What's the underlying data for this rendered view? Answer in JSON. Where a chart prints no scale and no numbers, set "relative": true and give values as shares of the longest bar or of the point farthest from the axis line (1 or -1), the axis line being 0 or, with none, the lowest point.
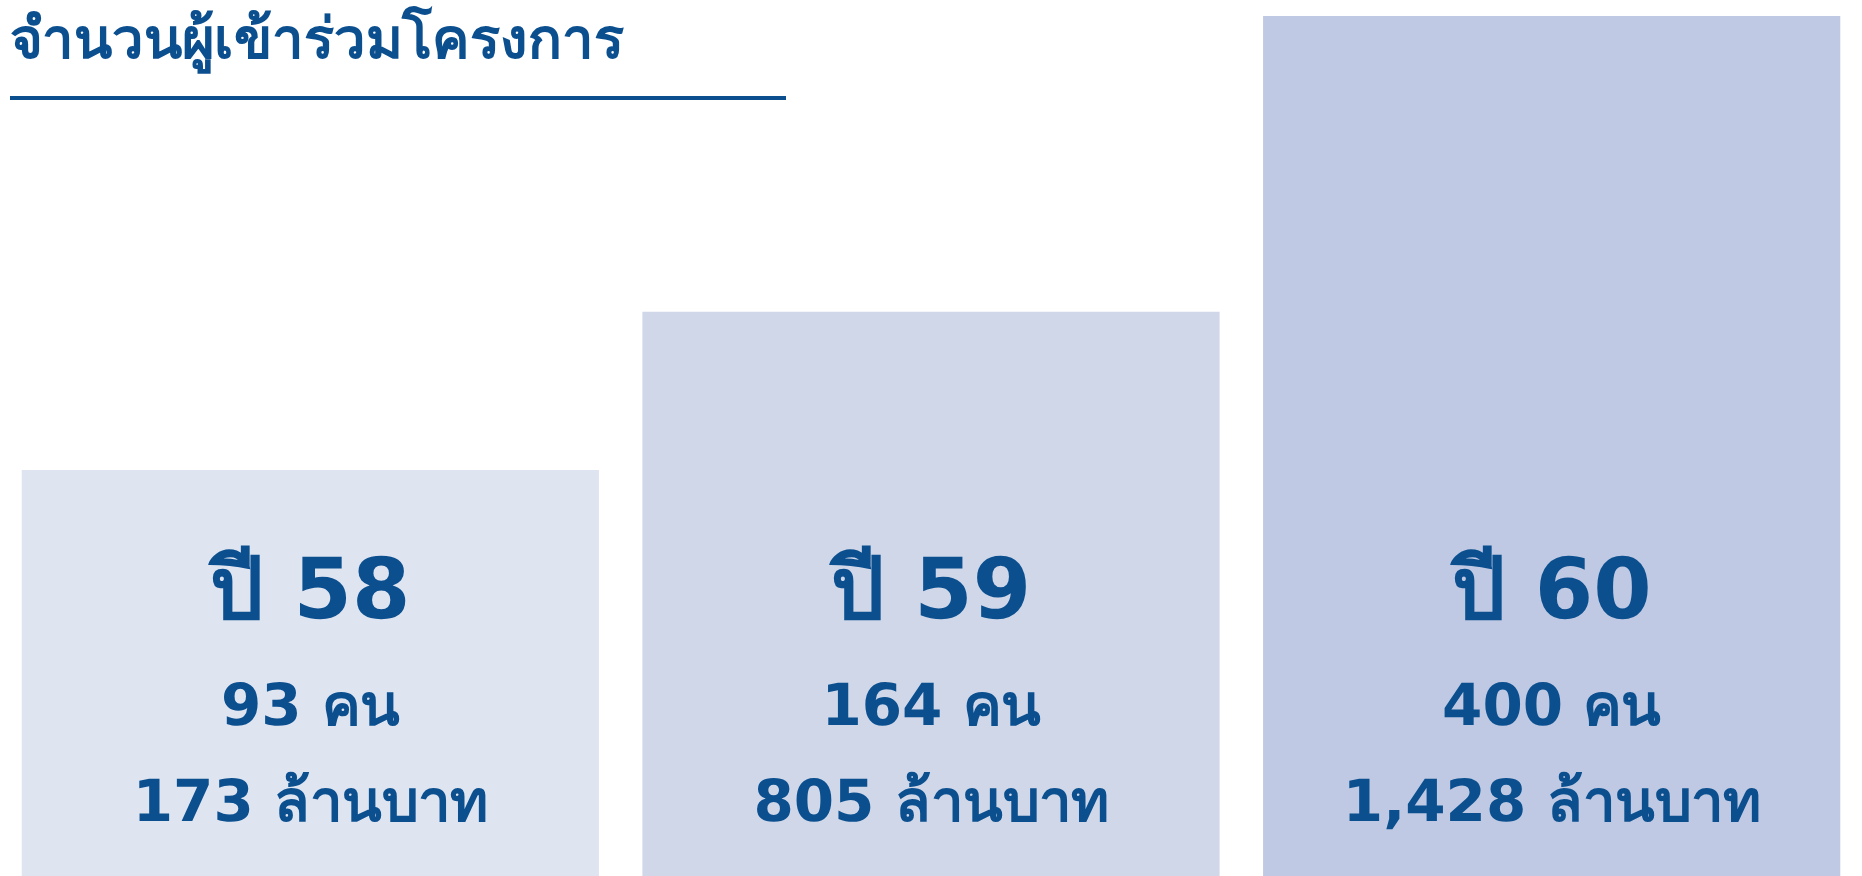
{
  "chart_data": {
    "type": "bar",
    "title": "จำนวนผู้เข้าร่วมโครงการ",
    "relative": true,
    "categories": [
      "ปี 58",
      "ปี 59",
      "ปี 60"
    ],
    "values": [
      0.472,
      0.656,
      1
    ],
    "colors": [
      "#dfe4f1",
      "#cfd7e9",
      "#bfc9e3"
    ],
    "annotations": [
      "93 คน",
      "173 ล้านบาท",
      "164 คน",
      "805 ล้านบาท",
      "400 คน",
      "1,428 ล้านบาท"
    ]
  }
}
